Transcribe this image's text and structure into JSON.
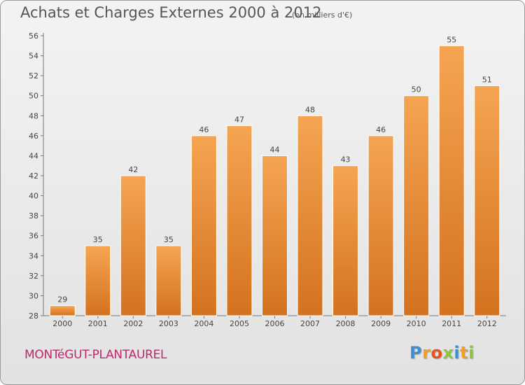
{
  "chart_data": {
    "type": "bar",
    "title": "Achats et Charges Externes 2000 à 2012",
    "subtitle": "(en milliers d'€)",
    "categories": [
      "2000",
      "2001",
      "2002",
      "2003",
      "2004",
      "2005",
      "2006",
      "2007",
      "2008",
      "2009",
      "2010",
      "2011",
      "2012"
    ],
    "values": [
      29,
      35,
      42,
      35,
      46,
      47,
      44,
      48,
      43,
      46,
      50,
      55,
      51
    ],
    "ylim": [
      28,
      56
    ],
    "yticks": [
      28,
      30,
      32,
      34,
      36,
      38,
      40,
      42,
      44,
      46,
      48,
      50,
      52,
      54,
      56
    ],
    "grid": false,
    "bar_color_top": "#f5a552",
    "bar_color_bottom": "#d4721e"
  },
  "footer": {
    "commune": "MONTéGUT-PLANTAUREL",
    "commune_color": "#c0286e",
    "logo_letters": [
      {
        "ch": "P",
        "color": "#3d8fd1"
      },
      {
        "ch": "r",
        "color": "#f0a020"
      },
      {
        "ch": "o",
        "color": "#e8521e"
      },
      {
        "ch": "x",
        "color": "#8cc63f"
      },
      {
        "ch": "i",
        "color": "#3d8fd1"
      },
      {
        "ch": "t",
        "color": "#f0a020"
      },
      {
        "ch": "i",
        "color": "#8cc63f"
      }
    ]
  }
}
